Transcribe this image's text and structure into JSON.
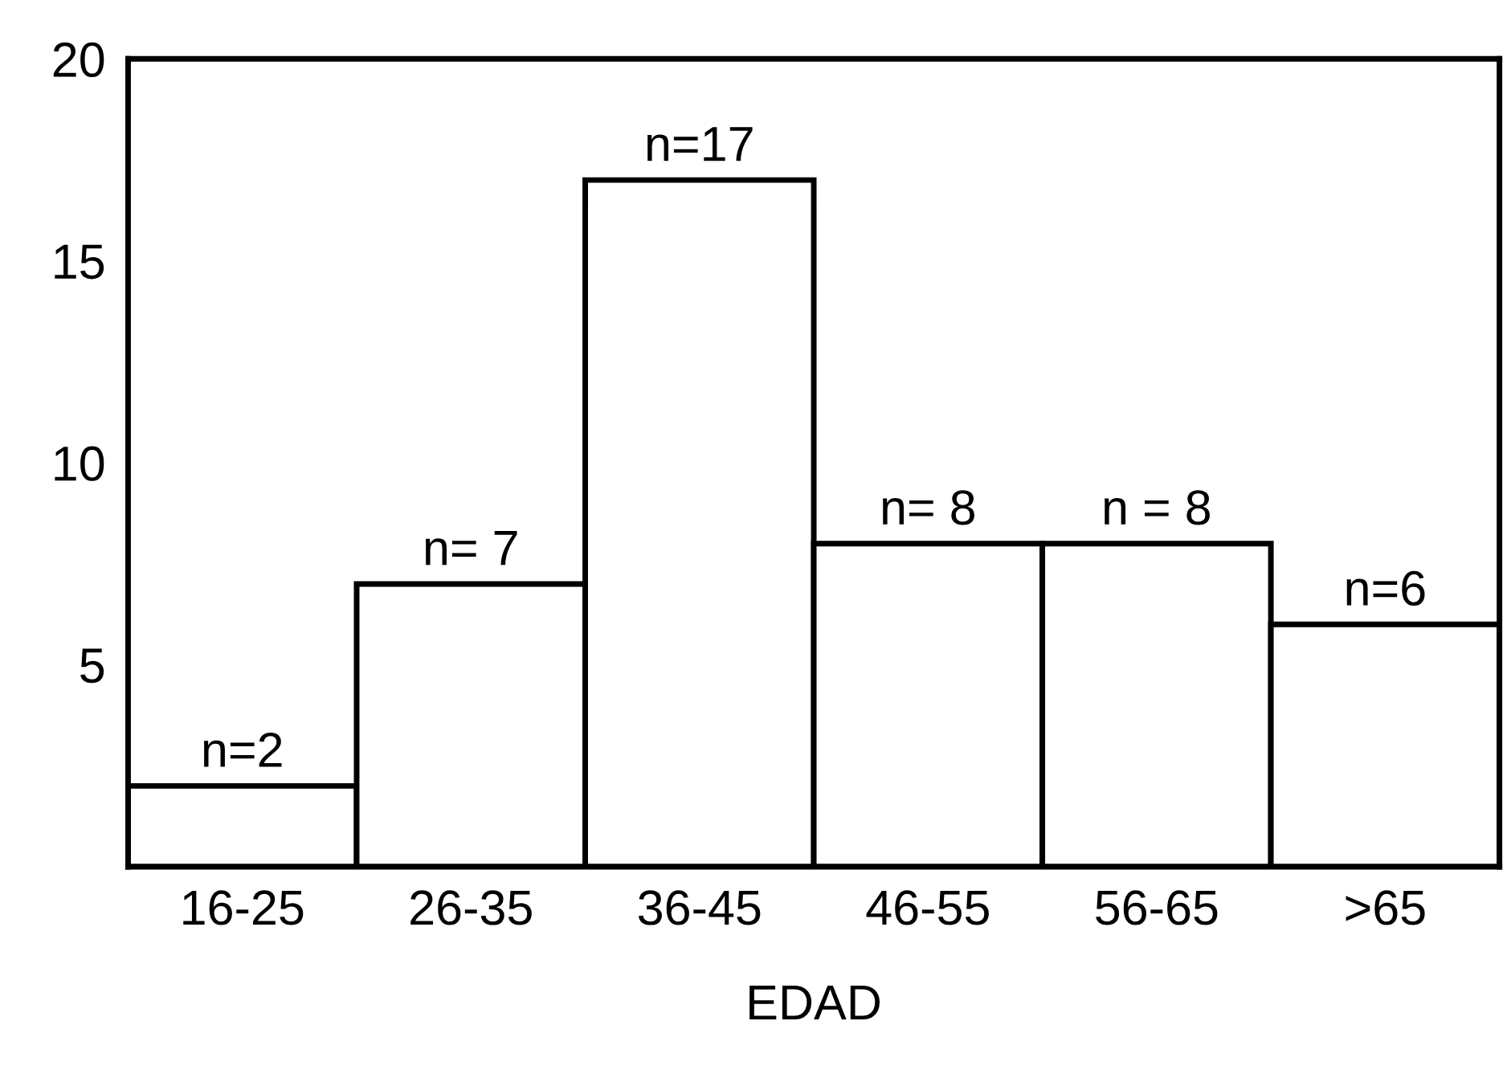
{
  "chart_data": {
    "type": "bar",
    "xlabel": "EDAD",
    "categories": [
      "16-25",
      "26-35",
      "36-45",
      "46-55",
      "56-65",
      ">65"
    ],
    "values": [
      2,
      7,
      17,
      8,
      8,
      6
    ],
    "value_labels": [
      "n=2",
      "n= 7",
      "n=17",
      "n= 8",
      "n = 8",
      "n=6"
    ],
    "color": "#ffffff",
    "ylim": [
      0,
      20
    ],
    "yticks": [
      5,
      10,
      15,
      20
    ],
    "grid": false
  }
}
